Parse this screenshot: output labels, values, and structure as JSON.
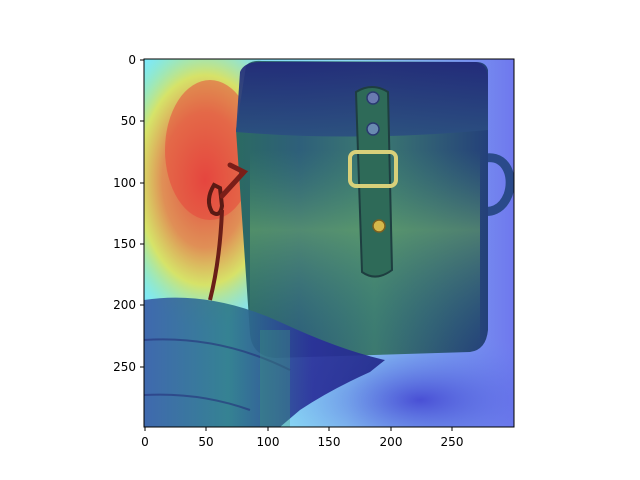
{
  "figure": {
    "axes": {
      "x_ticks": [
        0,
        50,
        100,
        150,
        200,
        250
      ],
      "y_ticks": [
        0,
        50,
        100,
        150,
        200,
        250
      ],
      "xlim": [
        0,
        300
      ],
      "ylim_inverted": [
        300,
        0
      ]
    },
    "image": {
      "subject": "shoulder-bag",
      "overlay": "attention-heatmap",
      "colormap": "jet",
      "colors": {
        "bag_dark": "#1f3a4a",
        "bag_mid": "#2f5a66",
        "strap": "#3a5a78",
        "metal": "#c8b24a",
        "heat_red": "#e8413a",
        "heat_yellow": "#f2e23a",
        "heat_cyan": "#7fe6f0",
        "heat_blue": "#3a3ad8"
      }
    }
  }
}
